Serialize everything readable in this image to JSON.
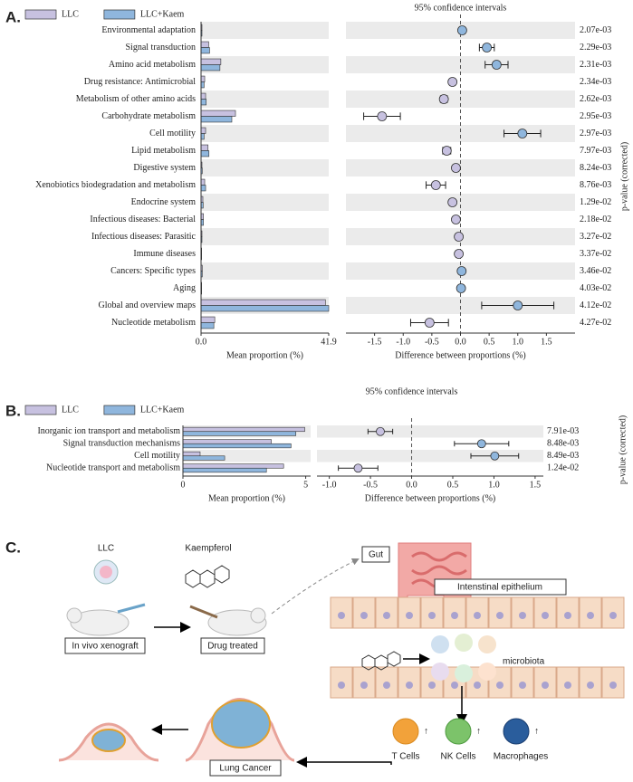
{
  "panel_labels": [
    "A.",
    "B.",
    "C."
  ],
  "chart_data": [
    {
      "type": "bar",
      "categories": [
        "Environmental adaptation",
        "Signal transduction",
        "Amino acid metabolism",
        "Drug resistance: Antimicrobial",
        "Metabolism of other amino acids",
        "Carbohydrate metabolism",
        "Cell motility",
        "Lipid metabolism",
        "Digestive system",
        "Xenobiotics biodegradation and metabolism",
        "Endocrine system",
        "Infectious diseases: Bacterial",
        "Infectious diseases: Parasitic",
        "Immune diseases",
        "Cancers: Specific types",
        "Aging",
        "Global and overview maps",
        "Nucleotide metabolism"
      ],
      "series": [
        {
          "name": "LLC",
          "color": "#c7c1e0",
          "values": [
            0.3,
            2.5,
            6.5,
            1.2,
            1.5,
            11.3,
            1.5,
            2.3,
            0.3,
            1.2,
            0.6,
            0.8,
            0.3,
            0.2,
            0.4,
            0.2,
            40.8,
            4.5
          ]
        },
        {
          "name": "LLC+Kaem",
          "color": "#8fb6dd",
          "values": [
            0.3,
            2.8,
            6.2,
            1.0,
            1.7,
            10.1,
            1.0,
            2.6,
            0.4,
            1.5,
            0.7,
            0.8,
            0.3,
            0.2,
            0.4,
            0.2,
            41.9,
            4.2
          ]
        }
      ],
      "xlim": [
        0,
        41.9
      ],
      "xticks": [
        {
          "value": 0,
          "label": "0.0"
        },
        41.9
      ],
      "xlabel": "Mean proportion (%)",
      "legend": "upper left"
    },
    {
      "type": "errorbar",
      "title": "95% confidence intervals",
      "values": [
        0.03,
        0.46,
        0.63,
        -0.14,
        -0.29,
        -1.37,
        1.08,
        -0.24,
        -0.08,
        -0.43,
        -0.14,
        -0.08,
        -0.03,
        -0.03,
        0.02,
        0.01,
        1.0,
        -0.54
      ],
      "errors": [
        0.02,
        0.13,
        0.2,
        0.03,
        0.06,
        0.32,
        0.32,
        0.07,
        0.02,
        0.17,
        0.03,
        0.02,
        0.02,
        0.01,
        0.02,
        0.01,
        0.63,
        0.33
      ],
      "xlim": [
        -2,
        2
      ],
      "xticks": [
        -1.5,
        {
          "value": -1,
          "label": "-1.0"
        },
        -0.5,
        {
          "value": 0,
          "label": "0.0"
        },
        0.5,
        {
          "value": 1,
          "label": "1.0"
        },
        1.5
      ],
      "xlabel": "Difference between proportions (%)",
      "p_values": [
        "2.07e-03",
        "2.29e-03",
        "2.31e-03",
        "2.34e-03",
        "2.62e-03",
        "2.95e-03",
        "2.97e-03",
        "7.97e-03",
        "8.24e-03",
        "8.76e-03",
        "1.29e-02",
        "2.18e-02",
        "3.27e-02",
        "3.37e-02",
        "3.46e-02",
        "4.03e-02",
        "4.12e-02",
        "4.27e-02"
      ],
      "p_value_label": "p-value (corrected)",
      "color_negative": "#c7c1e0",
      "color_positive": "#8fb6dd"
    },
    {
      "type": "bar",
      "categories": [
        "Inorganic ion transport and metabolism",
        "Signal transduction mechanisms",
        "Cell motility",
        "Nucleotide transport and metabolism"
      ],
      "series": [
        {
          "name": "LLC",
          "color": "#c7c1e0",
          "values": [
            4.96,
            3.6,
            0.7,
            4.1
          ]
        },
        {
          "name": "LLC+Kaem",
          "color": "#8fb6dd",
          "values": [
            4.6,
            4.4,
            1.7,
            3.4
          ]
        }
      ],
      "xlim": [
        0,
        5.2
      ],
      "xticks": [
        0,
        5
      ],
      "xlabel": "Mean proportion (%)",
      "legend": "upper left"
    },
    {
      "type": "errorbar",
      "title": "95% confidence intervals",
      "values": [
        -0.38,
        0.85,
        1.01,
        -0.65
      ],
      "errors": [
        0.15,
        0.33,
        0.29,
        0.24
      ],
      "xlim": [
        -1.15,
        1.6
      ],
      "xticks": [
        {
          "value": -1,
          "label": "-1.0"
        },
        -0.5,
        {
          "value": 0,
          "label": "0.0"
        },
        0.5,
        {
          "value": 1,
          "label": "1.0"
        },
        1.5
      ],
      "xlabel": "Difference between proportions (%)",
      "p_values": [
        "7.91e-03",
        "8.48e-03",
        "8.49e-03",
        "1.24e-02"
      ],
      "p_value_label": "p-value (corrected)",
      "color_negative": "#c7c1e0",
      "color_positive": "#8fb6dd"
    }
  ],
  "diagram": {
    "llc": "LLC",
    "drug": "Kaempferol",
    "step1": "In vivo xenograft",
    "step2": "Drug treated",
    "gut": "Gut",
    "epithelium": "Intenstinal epithelium",
    "microbiota": "microbiota",
    "t_cells": "T Cells",
    "nk_cells": "NK Cells",
    "macrophages": "Macrophages",
    "cancer": "Lung Cancer"
  }
}
